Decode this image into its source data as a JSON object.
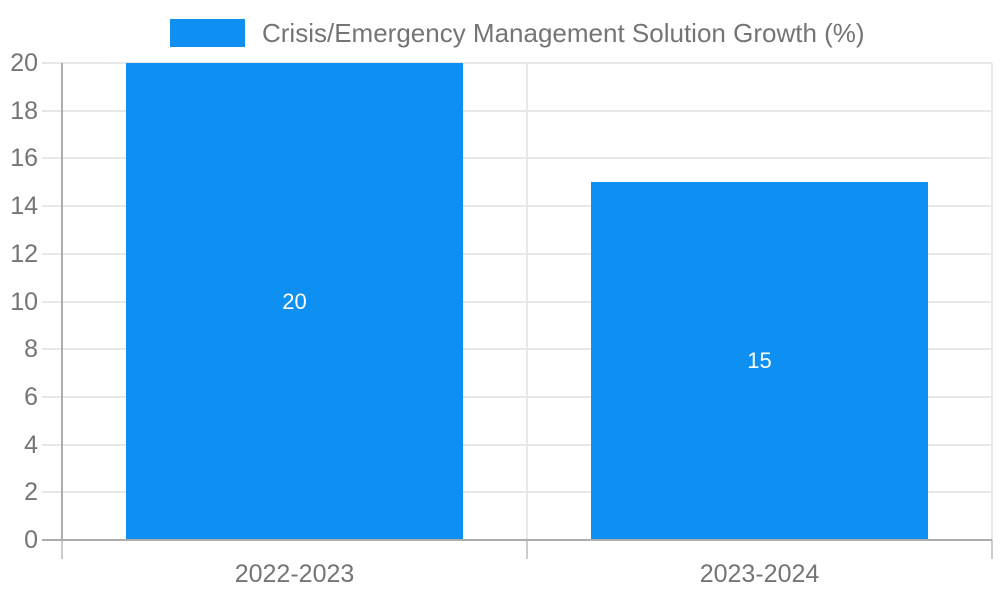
{
  "chart_data": {
    "type": "bar",
    "title": "Crisis/Emergency Management Solution Growth (%)",
    "categories": [
      "2022-2023",
      "2023-2024"
    ],
    "values": [
      20,
      15
    ],
    "series": [
      {
        "name": "Crisis/Emergency Management Solution Growth (%)",
        "values": [
          20,
          15
        ]
      }
    ],
    "bar_value_labels": [
      "20",
      "15"
    ],
    "xlabel": "",
    "ylabel": "",
    "ylim": [
      0,
      20
    ],
    "ytick_step": 2,
    "yticks": [
      0,
      2,
      4,
      6,
      8,
      10,
      12,
      14,
      16,
      18,
      20
    ],
    "grid": true,
    "legend_position": "top",
    "colors": {
      "bar": "#0e8ff2",
      "axis_text": "#757575",
      "legend_text": "#757575",
      "gridline": "#e8e8e8",
      "axis_line": "#adadad",
      "tick": "#cccccc",
      "bar_label": "#ffffff",
      "background": "#ffffff"
    }
  }
}
